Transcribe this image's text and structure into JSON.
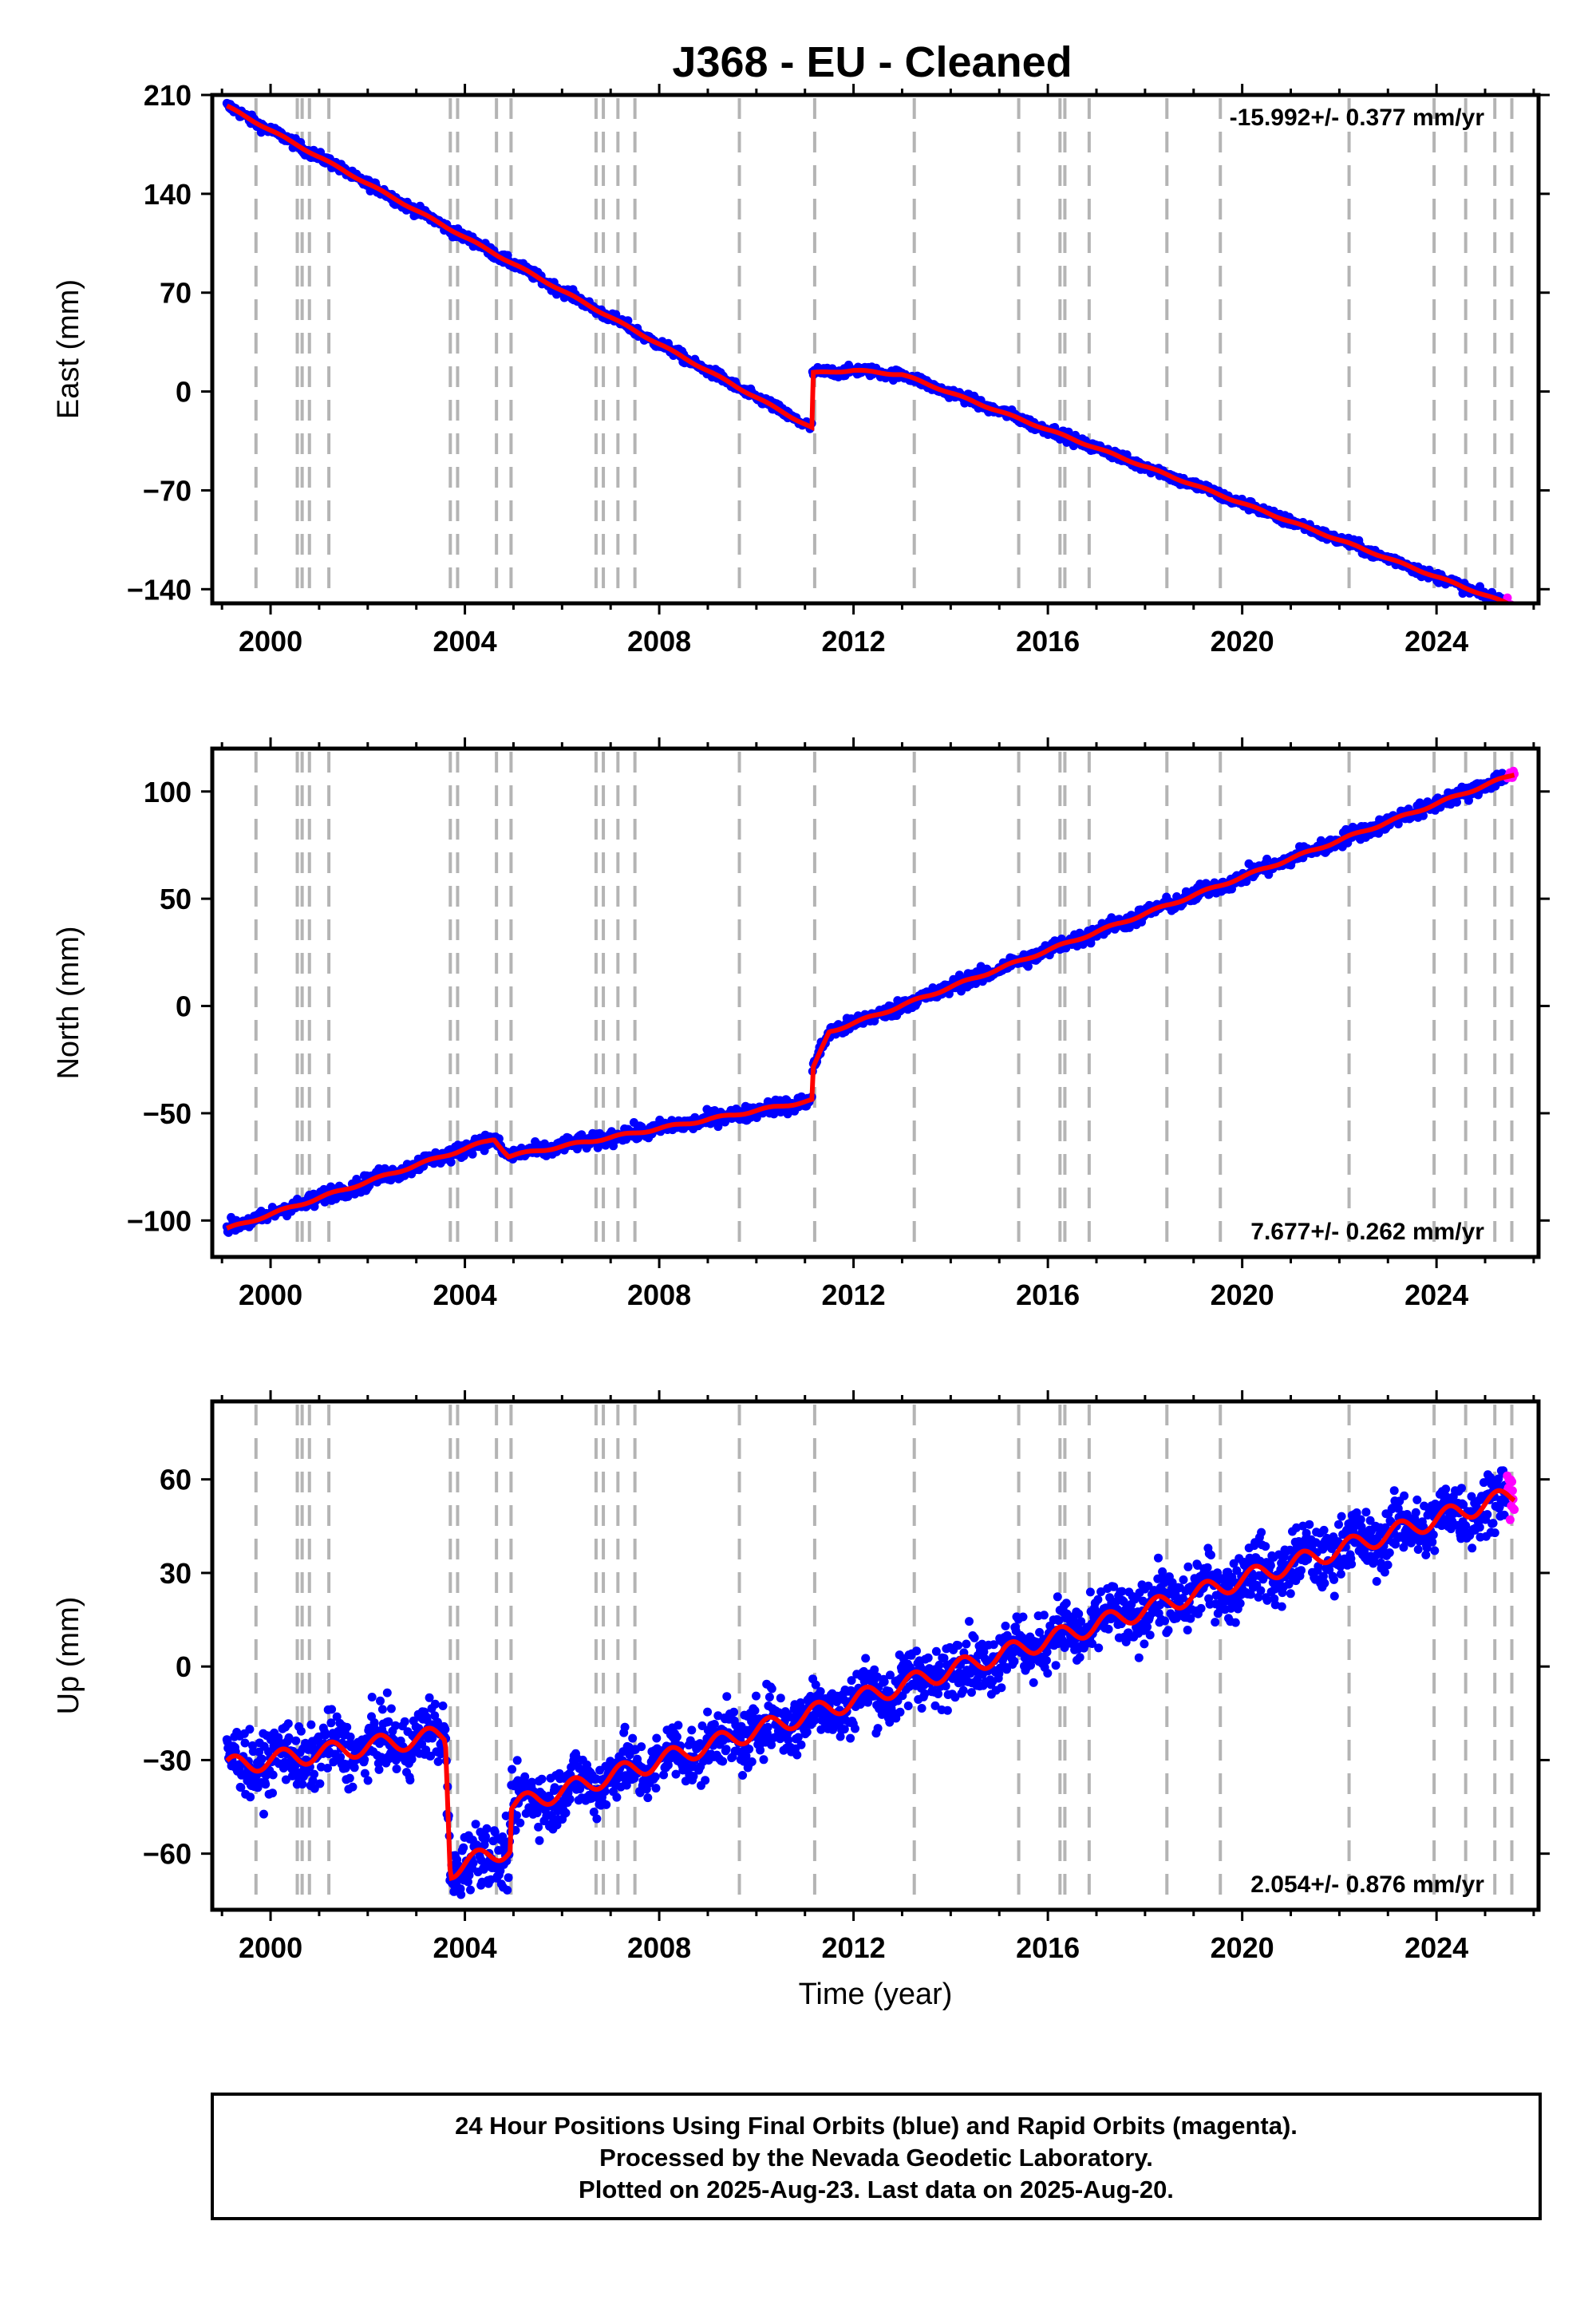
{
  "title": "J368  - EU - Cleaned",
  "colors": {
    "final": "#0000ff",
    "rapid": "#ff00ff",
    "model": "#ff0000",
    "event_lines": "#b4b4b4"
  },
  "footer": {
    "line1": "24 Hour Positions Using Final Orbits (blue) and Rapid Orbits (magenta).",
    "line2": "Processed by the Nevada Geodetic Laboratory.",
    "line3": "Plotted on 2025-Aug-23. Last data on 2025-Aug-20."
  },
  "chart_data": [
    {
      "type": "scatter",
      "ylabel": "East (mm)",
      "xlabel": "",
      "xlim": [
        1998.8,
        2026.1
      ],
      "ylim": [
        -150,
        210
      ],
      "xticks": [
        2000,
        2004,
        2008,
        2012,
        2016,
        2020,
        2024
      ],
      "yticks": [
        210,
        140,
        70,
        0,
        -70,
        -140
      ],
      "rate_text": "-15.992+/- 0.377 mm/yr",
      "rate_position": "top-right",
      "model": [
        [
          1999.1,
          202
        ],
        [
          2011.15,
          -26
        ],
        [
          2011.15,
          13
        ],
        [
          2012.0,
          15
        ],
        [
          2013.0,
          12
        ],
        [
          2025.6,
          -152
        ]
      ],
      "noise_mm": 2.5,
      "rapid_start": 2025.45,
      "event_lines": [
        1999.7,
        2000.55,
        2000.65,
        2000.8,
        2001.2,
        2003.7,
        2003.85,
        2004.65,
        2004.95,
        2006.7,
        2006.85,
        2007.15,
        2007.5,
        2009.65,
        2011.2,
        2013.25,
        2015.4,
        2016.25,
        2016.35,
        2016.85,
        2018.45,
        2019.55,
        2022.2,
        2023.95,
        2024.6,
        2025.2,
        2025.55
      ]
    },
    {
      "type": "scatter",
      "ylabel": "North (mm)",
      "xlabel": "",
      "xlim": [
        1998.8,
        2026.1
      ],
      "ylim": [
        -117,
        120
      ],
      "xticks": [
        2000,
        2004,
        2008,
        2012,
        2016,
        2020,
        2024
      ],
      "yticks": [
        100,
        50,
        0,
        -50,
        -100
      ],
      "rate_text": "7.677+/- 0.262 mm/yr",
      "rate_position": "bottom-right",
      "model": [
        [
          1999.1,
          -104
        ],
        [
          2004.6,
          -62
        ],
        [
          2004.9,
          -70
        ],
        [
          2011.15,
          -44
        ],
        [
          2011.15,
          -30
        ],
        [
          2011.5,
          -12
        ],
        [
          2012.5,
          -4
        ],
        [
          2025.6,
          108
        ]
      ],
      "noise_mm": 2.5,
      "rapid_start": 2025.45,
      "event_lines": [
        1999.7,
        2000.55,
        2000.65,
        2000.8,
        2001.2,
        2003.7,
        2003.85,
        2004.65,
        2004.95,
        2006.7,
        2006.85,
        2007.15,
        2007.5,
        2009.65,
        2011.2,
        2013.25,
        2015.4,
        2016.25,
        2016.35,
        2016.85,
        2018.45,
        2019.55,
        2022.2,
        2023.95,
        2024.6,
        2025.2,
        2025.55
      ]
    },
    {
      "type": "scatter",
      "ylabel": "Up (mm)",
      "xlabel": "Time (year)",
      "xlim": [
        1998.8,
        2026.1
      ],
      "ylim": [
        -78,
        85
      ],
      "xticks": [
        2000,
        2004,
        2008,
        2012,
        2016,
        2020,
        2024
      ],
      "yticks": [
        60,
        30,
        0,
        -30,
        -60
      ],
      "rate_text": "2.054+/- 0.876 mm/yr",
      "rate_position": "bottom-right",
      "model": [
        [
          1999.1,
          -32
        ],
        [
          2003.6,
          -22
        ],
        [
          2003.7,
          -65
        ],
        [
          2004.95,
          -58
        ],
        [
          2004.95,
          -45
        ],
        [
          2025.6,
          55
        ]
      ],
      "noise_mm": 7,
      "rapid_start": 2025.45,
      "event_lines": [
        1999.7,
        2000.55,
        2000.65,
        2000.8,
        2001.2,
        2003.7,
        2003.85,
        2004.65,
        2004.95,
        2006.7,
        2006.85,
        2007.15,
        2007.5,
        2009.65,
        2011.2,
        2013.25,
        2015.4,
        2016.25,
        2016.35,
        2016.85,
        2018.45,
        2019.55,
        2022.2,
        2023.95,
        2024.6,
        2025.2,
        2025.55
      ]
    }
  ]
}
